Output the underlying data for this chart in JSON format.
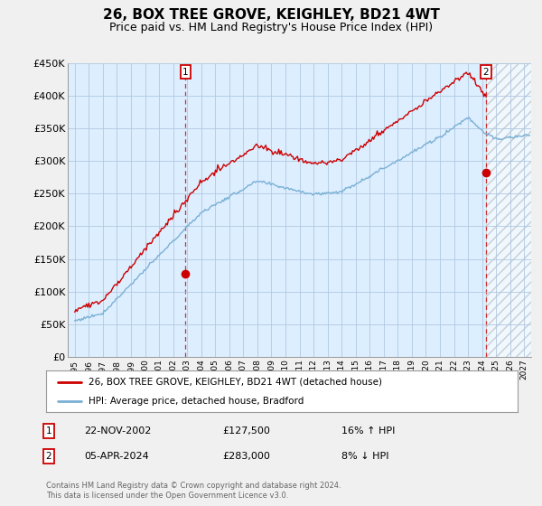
{
  "title": "26, BOX TREE GROVE, KEIGHLEY, BD21 4WT",
  "subtitle": "Price paid vs. HM Land Registry's House Price Index (HPI)",
  "title_fontsize": 11,
  "subtitle_fontsize": 9,
  "ylim": [
    0,
    450000
  ],
  "yticks": [
    0,
    50000,
    100000,
    150000,
    200000,
    250000,
    300000,
    350000,
    400000,
    450000
  ],
  "hpi_color": "#7ab0d4",
  "price_color": "#cc0000",
  "background_color": "#f0f0f0",
  "plot_bg_color": "#ddeeff",
  "grid_color": "#b0c8e0",
  "legend_entries": [
    "26, BOX TREE GROVE, KEIGHLEY, BD21 4WT (detached house)",
    "HPI: Average price, detached house, Bradford"
  ],
  "sale1_label": "1",
  "sale1_date": "22-NOV-2002",
  "sale1_price": "£127,500",
  "sale1_hpi": "16% ↑ HPI",
  "sale1_x": 2002.89,
  "sale1_y": 127500,
  "sale2_label": "2",
  "sale2_date": "05-APR-2024",
  "sale2_price": "£283,000",
  "sale2_hpi": "8% ↓ HPI",
  "sale2_x": 2024.27,
  "sale2_y": 283000,
  "vline1_x": 2002.89,
  "vline2_x": 2024.27,
  "footer": "Contains HM Land Registry data © Crown copyright and database right 2024.\nThis data is licensed under the Open Government Licence v3.0.",
  "hatch_xstart": 2024.27,
  "hatch_xend": 2027.5,
  "xmin": 1994.5,
  "xmax": 2027.5
}
